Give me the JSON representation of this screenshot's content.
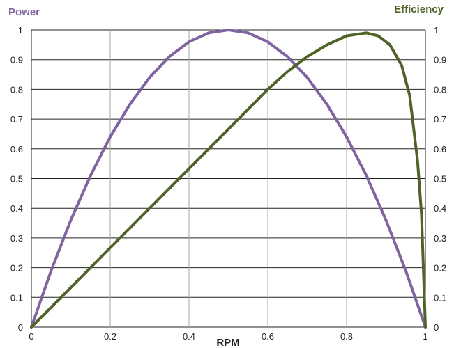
{
  "chart_data": {
    "type": "line",
    "xlabel": "RPM",
    "ylabel_left": "Power",
    "ylabel_right": "Efficiency",
    "xlim": [
      0,
      1
    ],
    "ylim": [
      0,
      1
    ],
    "y2lim": [
      0,
      1
    ],
    "grid": true,
    "x_ticks": [
      "0",
      "0.2",
      "0.4",
      "0.6",
      "0.8",
      "1"
    ],
    "y_ticks": [
      "0",
      "0.1",
      "0.2",
      "0.3",
      "0.4",
      "0.5",
      "0.6",
      "0.7",
      "0.8",
      "0.9",
      "1"
    ],
    "y2_ticks": [
      "0",
      "0.1",
      "0.2",
      "0.3",
      "0.4",
      "0.5",
      "0.6",
      "0.7",
      "0.8",
      "0.9",
      "1"
    ],
    "series": [
      {
        "axis": "left",
        "color": "#8064a2",
        "x": [
          0,
          0.05,
          0.1,
          0.15,
          0.2,
          0.25,
          0.3,
          0.35,
          0.4,
          0.45,
          0.5,
          0.55,
          0.6,
          0.65,
          0.7,
          0.75,
          0.8,
          0.85,
          0.9,
          0.95,
          1.0
        ],
        "values": [
          0,
          0.19,
          0.36,
          0.51,
          0.64,
          0.75,
          0.84,
          0.91,
          0.96,
          0.99,
          1.0,
          0.99,
          0.96,
          0.91,
          0.84,
          0.75,
          0.64,
          0.51,
          0.36,
          0.19,
          0
        ]
      },
      {
        "axis": "right",
        "color": "#4f6228",
        "x": [
          0,
          0.1,
          0.2,
          0.3,
          0.4,
          0.5,
          0.6,
          0.65,
          0.7,
          0.75,
          0.8,
          0.85,
          0.88,
          0.91,
          0.94,
          0.96,
          0.98,
          0.99,
          1.0
        ],
        "values": [
          0,
          0.133,
          0.267,
          0.4,
          0.533,
          0.666,
          0.8,
          0.86,
          0.91,
          0.95,
          0.98,
          0.99,
          0.98,
          0.95,
          0.88,
          0.78,
          0.56,
          0.38,
          0
        ]
      }
    ]
  }
}
